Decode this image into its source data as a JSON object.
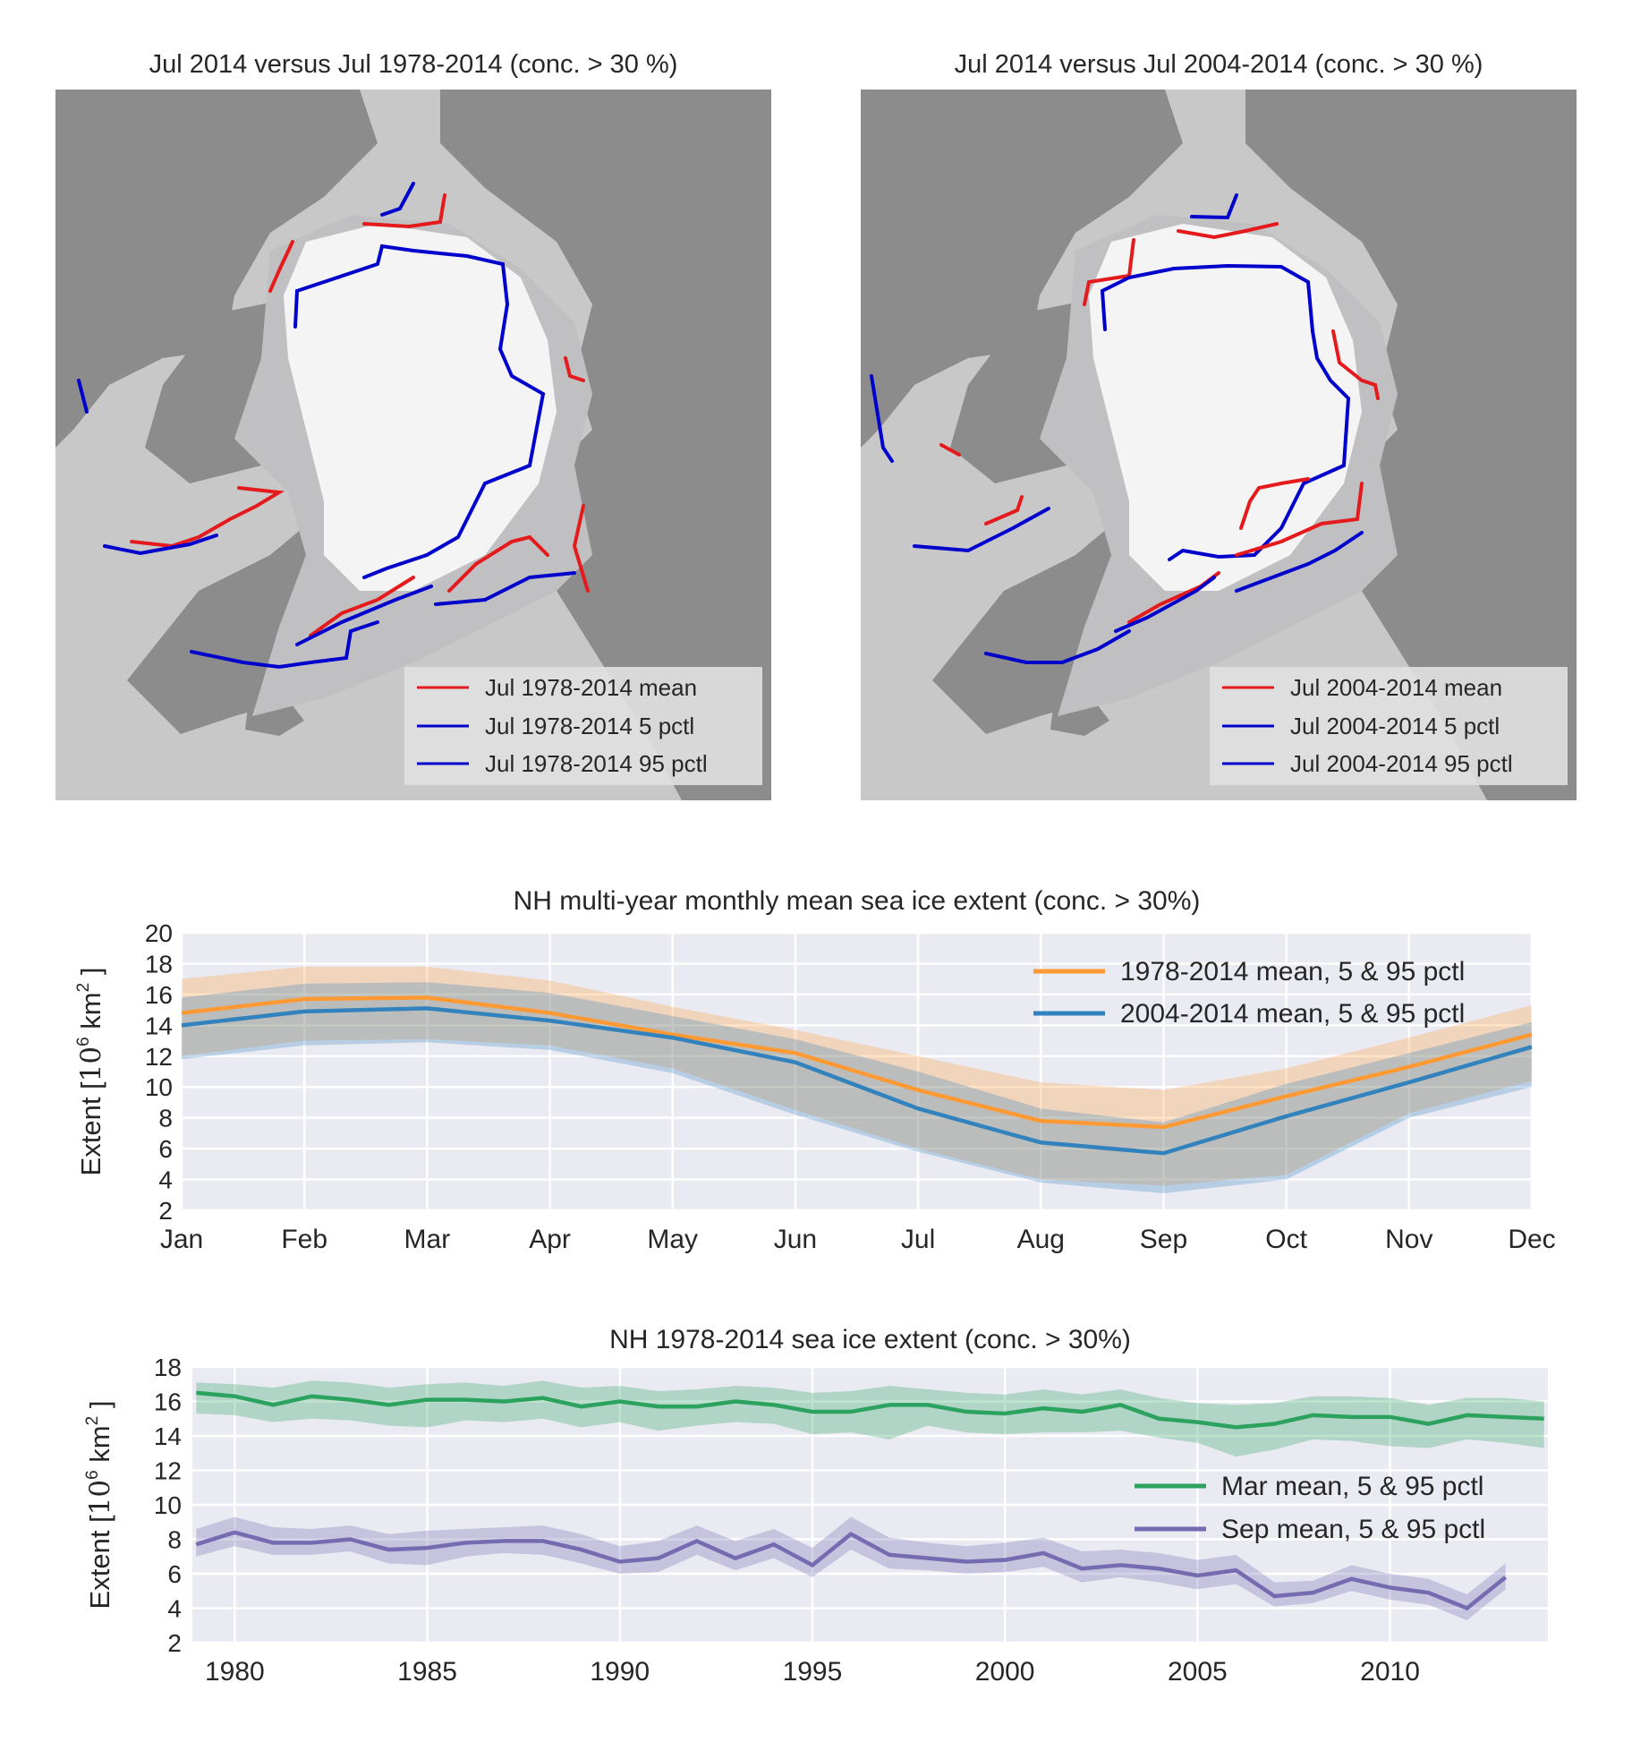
{
  "colors": {
    "land": "#8c8c8c",
    "ocean": "#c8c8c8",
    "ice": "#f4f4f5",
    "ice_edge_zone": "#c0c0c2",
    "mean_line": "#e41a1c",
    "pctl_line": "#0000cc",
    "plot_bg": "#eaeaf2",
    "grid": "#ffffff",
    "orange": "#ff9933",
    "steelblue": "#3182bd",
    "green": "#2ca25f",
    "purple": "#756bb1"
  },
  "maps": [
    {
      "title": "Jul 2014 versus Jul 1978-2014 (conc. > 30 %)",
      "legend": [
        "Jul 1978-2014 mean",
        "Jul 1978-2014 5 pctl",
        "Jul 1978-2014 95 pctl"
      ]
    },
    {
      "title": "Jul 2014 versus Jul 2004-2014 (conc. > 30 %)",
      "legend": [
        "Jul 2004-2014 mean",
        "Jul 2004-2014 5 pctl",
        "Jul 2004-2014 95 pctl"
      ]
    }
  ],
  "chart_data": [
    {
      "type": "line",
      "title": "NH multi-year monthly mean sea ice extent (conc. > 30%)",
      "ylabel": "Extent [10^6 km^2]",
      "ylim": [
        2,
        20
      ],
      "yticks": [
        2,
        4,
        6,
        8,
        10,
        12,
        14,
        16,
        18,
        20
      ],
      "categories": [
        "Jan",
        "Feb",
        "Mar",
        "Apr",
        "May",
        "Jun",
        "Jul",
        "Aug",
        "Sep",
        "Oct",
        "Nov",
        "Dec"
      ],
      "grid": true,
      "legend_position": "top-right",
      "series": [
        {
          "name": "1978-2014 mean, 5 & 95 pctl",
          "color": "#ff9933",
          "mean": [
            14.8,
            15.7,
            15.8,
            14.8,
            13.4,
            12.2,
            9.8,
            7.8,
            7.4,
            9.4,
            11.3,
            13.4
          ],
          "p5": [
            12.0,
            13.0,
            13.1,
            12.7,
            11.2,
            8.5,
            6.0,
            4.0,
            3.6,
            4.3,
            8.3,
            10.4
          ],
          "p95": [
            17.0,
            17.8,
            17.8,
            16.9,
            15.2,
            13.7,
            12.0,
            10.3,
            9.8,
            11.2,
            13.2,
            15.3
          ]
        },
        {
          "name": "2004-2014 mean, 5 & 95 pctl",
          "color": "#3182bd",
          "mean": [
            14.0,
            14.9,
            15.1,
            14.3,
            13.2,
            11.6,
            8.6,
            6.4,
            5.7,
            8.1,
            10.3,
            12.6
          ],
          "p5": [
            11.8,
            12.7,
            12.9,
            12.4,
            10.9,
            8.2,
            5.8,
            3.8,
            3.1,
            4.0,
            8.0,
            10.0
          ],
          "p95": [
            15.8,
            16.7,
            16.8,
            16.1,
            14.6,
            13.1,
            11.0,
            8.6,
            7.7,
            10.2,
            12.2,
            14.2
          ]
        }
      ]
    },
    {
      "type": "line",
      "title": "NH 1978-2014 sea ice extent (conc. > 30%)",
      "ylabel": "Extent [10^6 km^2]",
      "ylim": [
        2,
        18
      ],
      "xlim": [
        1978.9,
        2014.1
      ],
      "yticks": [
        2,
        4,
        6,
        8,
        10,
        12,
        14,
        16,
        18
      ],
      "xticks": [
        1980,
        1985,
        1990,
        1995,
        2000,
        2005,
        2010
      ],
      "grid": true,
      "legend_position": "center-right",
      "series": [
        {
          "name": "Mar mean, 5 & 95 pctl",
          "color": "#2ca25f",
          "x": [
            1979,
            1980,
            1981,
            1982,
            1983,
            1984,
            1985,
            1986,
            1987,
            1988,
            1989,
            1990,
            1991,
            1992,
            1993,
            1994,
            1995,
            1996,
            1997,
            1998,
            1999,
            2000,
            2001,
            2002,
            2003,
            2004,
            2005,
            2006,
            2007,
            2008,
            2009,
            2010,
            2011,
            2012,
            2013,
            2014
          ],
          "mean": [
            16.5,
            16.3,
            15.8,
            16.3,
            16.1,
            15.8,
            16.1,
            16.1,
            16.0,
            16.2,
            15.7,
            16.0,
            15.7,
            15.7,
            16.0,
            15.8,
            15.4,
            15.4,
            15.8,
            15.8,
            15.4,
            15.3,
            15.6,
            15.4,
            15.8,
            15.0,
            14.8,
            14.5,
            14.7,
            15.2,
            15.1,
            15.1,
            14.7,
            15.2,
            15.1,
            15.0
          ],
          "p5": [
            15.3,
            15.2,
            14.8,
            15.0,
            14.9,
            14.6,
            14.5,
            14.9,
            14.8,
            15.0,
            14.5,
            14.8,
            14.3,
            14.6,
            14.8,
            14.7,
            14.1,
            14.2,
            13.8,
            14.6,
            14.2,
            14.1,
            14.2,
            14.2,
            14.3,
            13.9,
            13.6,
            12.8,
            13.2,
            13.8,
            13.7,
            13.4,
            13.3,
            13.8,
            13.6,
            13.3
          ],
          "p95": [
            17.1,
            17.0,
            16.8,
            17.2,
            17.1,
            16.8,
            17.0,
            17.1,
            16.9,
            17.2,
            16.8,
            16.9,
            16.6,
            16.7,
            16.9,
            16.8,
            16.5,
            16.6,
            16.9,
            16.7,
            16.5,
            16.4,
            16.7,
            16.4,
            16.7,
            16.2,
            15.9,
            15.8,
            15.9,
            16.3,
            16.3,
            16.2,
            15.8,
            16.2,
            16.2,
            16.0
          ]
        },
        {
          "name": "Sep mean, 5 & 95 pctl",
          "color": "#756bb1",
          "x": [
            1979,
            1980,
            1981,
            1982,
            1983,
            1984,
            1985,
            1986,
            1987,
            1988,
            1989,
            1990,
            1991,
            1992,
            1993,
            1994,
            1995,
            1996,
            1997,
            1998,
            1999,
            2000,
            2001,
            2002,
            2003,
            2004,
            2005,
            2006,
            2007,
            2008,
            2009,
            2010,
            2011,
            2012,
            2013
          ],
          "mean": [
            7.7,
            8.4,
            7.8,
            7.8,
            8.0,
            7.4,
            7.5,
            7.8,
            7.9,
            7.9,
            7.4,
            6.7,
            6.9,
            7.9,
            6.9,
            7.7,
            6.5,
            8.3,
            7.1,
            6.9,
            6.7,
            6.8,
            7.2,
            6.3,
            6.5,
            6.3,
            5.9,
            6.2,
            4.7,
            4.9,
            5.7,
            5.2,
            4.9,
            4.0,
            5.8
          ],
          "p5": [
            7.0,
            7.6,
            7.1,
            7.1,
            7.3,
            6.6,
            6.5,
            7.0,
            7.2,
            7.1,
            6.6,
            6.0,
            6.1,
            7.1,
            6.2,
            6.9,
            5.8,
            7.4,
            6.3,
            6.2,
            6.0,
            6.1,
            6.4,
            5.5,
            5.8,
            5.5,
            5.1,
            5.4,
            4.1,
            4.3,
            5.0,
            4.5,
            4.2,
            3.3,
            5.1
          ],
          "p95": [
            8.6,
            9.3,
            8.7,
            8.6,
            8.8,
            8.3,
            8.5,
            8.6,
            8.7,
            8.8,
            8.3,
            7.6,
            7.9,
            8.8,
            7.9,
            8.6,
            7.5,
            9.3,
            8.1,
            7.8,
            7.6,
            7.8,
            8.1,
            7.3,
            7.4,
            7.2,
            6.8,
            7.1,
            5.5,
            5.6,
            6.5,
            6.0,
            5.7,
            4.8,
            6.6
          ]
        }
      ]
    }
  ]
}
